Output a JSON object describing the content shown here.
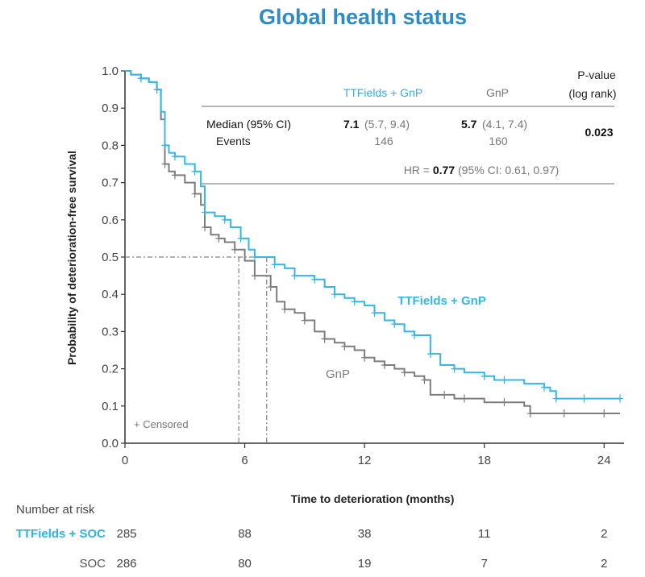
{
  "chart_data": {
    "type": "line",
    "title": "Global health status",
    "xlabel": "Time to deterioration (months)",
    "ylabel": "Probability of deterioration-free survival",
    "xlim": [
      0,
      25
    ],
    "ylim": [
      0,
      1.0
    ],
    "x_ticks": [
      "0",
      "6",
      "12",
      "18",
      "24"
    ],
    "y_ticks": [
      "0.0",
      "0.1",
      "0.2",
      "0.3",
      "0.4",
      "0.5",
      "0.6",
      "0.7",
      "0.8",
      "0.9",
      "1.0"
    ],
    "series": [
      {
        "name": "TTFields + GnP",
        "color": "#35b6e6",
        "x": [
          0,
          0.3,
          0.8,
          1.2,
          1.6,
          1.8,
          2.0,
          2.2,
          2.5,
          3.0,
          3.5,
          3.8,
          4.0,
          4.5,
          5.0,
          5.3,
          5.8,
          6.2,
          6.5,
          7.0,
          7.5,
          8.0,
          8.5,
          9.0,
          9.5,
          10.0,
          10.5,
          11.0,
          11.5,
          12.0,
          12.5,
          13.0,
          13.5,
          14.0,
          14.5,
          15.0,
          15.3,
          15.8,
          16.5,
          17.0,
          18.0,
          18.5,
          19.0,
          20.0,
          21.0,
          21.3,
          21.6,
          22.0,
          23.0,
          24.0,
          24.8
        ],
        "y": [
          1.0,
          0.99,
          0.98,
          0.97,
          0.95,
          0.89,
          0.8,
          0.78,
          0.77,
          0.75,
          0.73,
          0.69,
          0.62,
          0.61,
          0.6,
          0.58,
          0.55,
          0.52,
          0.5,
          0.5,
          0.48,
          0.47,
          0.45,
          0.45,
          0.44,
          0.42,
          0.4,
          0.39,
          0.38,
          0.37,
          0.35,
          0.33,
          0.32,
          0.3,
          0.29,
          0.29,
          0.24,
          0.21,
          0.2,
          0.19,
          0.18,
          0.17,
          0.17,
          0.16,
          0.15,
          0.14,
          0.12,
          0.12,
          0.12,
          0.12,
          0.12
        ]
      },
      {
        "name": "GnP",
        "color": "#7d7d7d",
        "x": [
          0,
          0.3,
          0.8,
          1.2,
          1.6,
          1.8,
          2.0,
          2.2,
          2.5,
          3.0,
          3.5,
          3.8,
          4.0,
          4.3,
          4.7,
          5.0,
          5.5,
          6.0,
          6.5,
          7.0,
          7.3,
          7.6,
          8.0,
          8.5,
          9.0,
          9.5,
          10.0,
          10.5,
          11.0,
          11.5,
          12.0,
          12.5,
          13.0,
          13.5,
          14.0,
          14.5,
          15.0,
          15.3,
          16.0,
          16.5,
          17.0,
          18.0,
          19.0,
          20.0,
          20.3,
          21.0,
          22.0,
          23.0,
          24.0,
          24.8
        ],
        "y": [
          1.0,
          0.99,
          0.98,
          0.97,
          0.95,
          0.87,
          0.75,
          0.73,
          0.72,
          0.7,
          0.67,
          0.64,
          0.58,
          0.56,
          0.55,
          0.54,
          0.52,
          0.49,
          0.45,
          0.45,
          0.42,
          0.38,
          0.36,
          0.35,
          0.33,
          0.3,
          0.28,
          0.27,
          0.26,
          0.25,
          0.23,
          0.22,
          0.21,
          0.2,
          0.19,
          0.18,
          0.17,
          0.13,
          0.13,
          0.12,
          0.12,
          0.11,
          0.11,
          0.1,
          0.08,
          0.08,
          0.08,
          0.08,
          0.08,
          0.08
        ]
      }
    ],
    "series_labels": [
      "TTFields + GnP",
      "GnP"
    ],
    "median_lines": [
      {
        "y": 0.5,
        "x": 5.7
      },
      {
        "y": 0.5,
        "x": 7.1
      }
    ],
    "censored_label": "+ Censored",
    "stats_table": {
      "col_headers": [
        "TTFields + GnP",
        "GnP",
        "P-value",
        "(log rank)"
      ],
      "row1_label": "Median (95% CI)",
      "row1_ttf_bold": "7.1",
      "row1_ttf_ci": "(5.7, 9.4)",
      "row1_gnp_bold": "5.7",
      "row1_gnp_ci": "(4.1, 7.4)",
      "pvalue": "0.023",
      "row2_label": "Events",
      "row2_ttf": "146",
      "row2_gnp": "160",
      "hr_prefix": "HR = ",
      "hr_bold": "0.77",
      "hr_ci": " (95% CI: 0.61, 0.97)"
    },
    "risk_table": {
      "title": "Number at risk",
      "rows": [
        {
          "label": "TTFields + SOC",
          "color": "#2eb3dd",
          "values": [
            "285",
            "88",
            "38",
            "11",
            "2"
          ]
        },
        {
          "label": "SOC",
          "color": "#555555",
          "values": [
            "286",
            "80",
            "19",
            "7",
            "2"
          ]
        }
      ]
    }
  }
}
